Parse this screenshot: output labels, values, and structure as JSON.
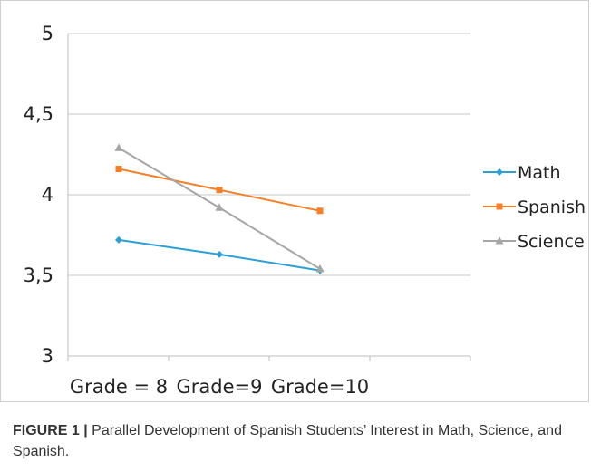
{
  "chart_data": {
    "type": "line",
    "categories": [
      "Grade = 8",
      "Grade=9",
      "Grade=10"
    ],
    "series": [
      {
        "name": "Math",
        "values": [
          3.72,
          3.63,
          3.53
        ],
        "color": "#2e9fd5",
        "marker": "diamond"
      },
      {
        "name": "Spanish",
        "values": [
          4.16,
          4.03,
          3.9
        ],
        "color": "#f4812a",
        "marker": "square"
      },
      {
        "name": "Science",
        "values": [
          4.29,
          3.92,
          3.54
        ],
        "color": "#a6a6a6",
        "marker": "triangle"
      }
    ],
    "yticks": [
      "5",
      "4,5",
      "4",
      "3,5",
      "3"
    ],
    "ylim": [
      3,
      5
    ],
    "grid": "horizontal",
    "legend": "right"
  },
  "caption": {
    "label": "FIGURE 1 |",
    "text": " Parallel Development of Spanish Students’ Interest in Math, Science, and Spanish."
  }
}
